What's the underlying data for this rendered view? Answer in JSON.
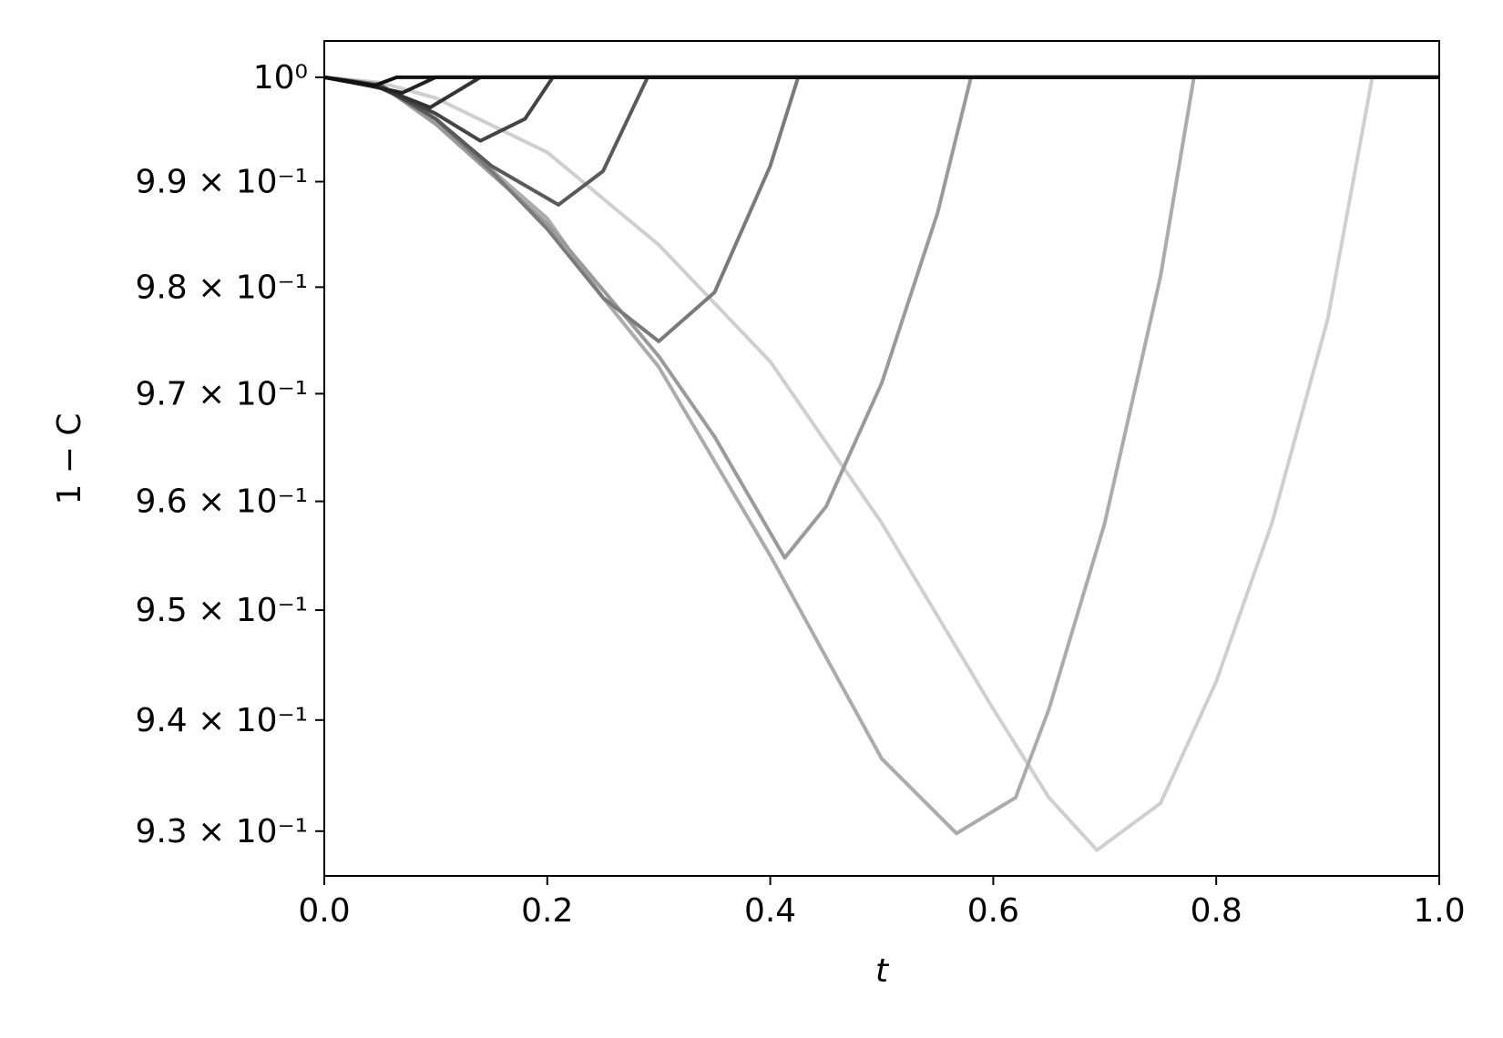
{
  "chart_data": {
    "type": "line",
    "xlabel": "t",
    "ylabel": "1 − C",
    "xlim": [
      0,
      1
    ],
    "ylim": [
      0.926,
      1.0035
    ],
    "ylog": true,
    "xticks": [
      {
        "value": 0,
        "label": "0.0"
      },
      0.2,
      0.4,
      0.6,
      0.8,
      {
        "value": 1,
        "label": "1.0"
      }
    ],
    "yticks": [
      {
        "value": 1,
        "label": "10⁰"
      },
      {
        "value": 0.99,
        "label": "9.9 × 10⁻¹"
      },
      {
        "value": 0.98,
        "label": "9.8 × 10⁻¹"
      },
      {
        "value": 0.97,
        "label": "9.7 × 10⁻¹"
      },
      {
        "value": 0.96,
        "label": "9.6 × 10⁻¹"
      },
      {
        "value": 0.95,
        "label": "9.5 × 10⁻¹"
      },
      {
        "value": 0.94,
        "label": "9.4 × 10⁻¹"
      },
      {
        "value": 0.93,
        "label": "9.3 × 10⁻¹"
      }
    ],
    "series": [
      {
        "color": "#cfcfcf",
        "x": [
          0,
          0.05,
          0.1,
          0.2,
          0.3,
          0.4,
          0.5,
          0.6,
          0.65,
          0.693,
          0.75,
          0.8,
          0.85,
          0.9,
          0.94,
          1
        ],
        "values": [
          1,
          0.9995,
          0.998,
          0.9928,
          0.984,
          0.973,
          0.958,
          0.941,
          0.933,
          0.9283,
          0.9325,
          0.9435,
          0.958,
          0.977,
          1,
          1
        ]
      },
      {
        "color": "#ababab",
        "x": [
          0,
          0.05,
          0.1,
          0.2,
          0.25,
          0.3,
          0.4,
          0.5,
          0.567,
          0.62,
          0.65,
          0.7,
          0.75,
          0.78,
          1
        ],
        "values": [
          1,
          0.9993,
          0.9958,
          0.9865,
          0.979,
          0.9725,
          0.955,
          0.9365,
          0.9298,
          0.933,
          0.941,
          0.958,
          0.981,
          1,
          1
        ]
      },
      {
        "color": "#9a9a9a",
        "x": [
          0,
          0.05,
          0.1,
          0.2,
          0.3,
          0.35,
          0.413,
          0.45,
          0.5,
          0.55,
          0.58,
          1
        ],
        "values": [
          1,
          0.9993,
          0.9955,
          0.986,
          0.9735,
          0.966,
          0.9548,
          0.9595,
          0.971,
          0.987,
          1,
          1
        ]
      },
      {
        "color": "#7a7a7a",
        "x": [
          0,
          0.05,
          0.1,
          0.15,
          0.2,
          0.25,
          0.3,
          0.35,
          0.4,
          0.425,
          1
        ],
        "values": [
          1,
          0.9993,
          0.996,
          0.991,
          0.9855,
          0.979,
          0.9749,
          0.9795,
          0.9915,
          1,
          1
        ]
      },
      {
        "color": "#5a5a5a",
        "x": [
          0,
          0.05,
          0.1,
          0.15,
          0.21,
          0.25,
          0.29,
          1
        ],
        "values": [
          1,
          0.9992,
          0.996,
          0.9915,
          0.9878,
          0.991,
          1,
          1
        ]
      },
      {
        "color": "#444444",
        "x": [
          0,
          0.05,
          0.1,
          0.14,
          0.18,
          0.205,
          1
        ],
        "values": [
          1,
          0.999,
          0.9965,
          0.9939,
          0.996,
          1,
          1
        ]
      },
      {
        "color": "#333333",
        "x": [
          0,
          0.05,
          0.095,
          0.14,
          1
        ],
        "values": [
          1,
          0.999,
          0.9971,
          1,
          1
        ]
      },
      {
        "color": "#222222",
        "x": [
          0,
          0.04,
          0.07,
          0.1,
          1
        ],
        "values": [
          1,
          0.9992,
          0.9985,
          1,
          1
        ]
      },
      {
        "color": "#111111",
        "x": [
          0,
          0.03,
          0.045,
          0.065,
          1
        ],
        "values": [
          1,
          0.9995,
          0.9992,
          1,
          1
        ]
      }
    ]
  }
}
